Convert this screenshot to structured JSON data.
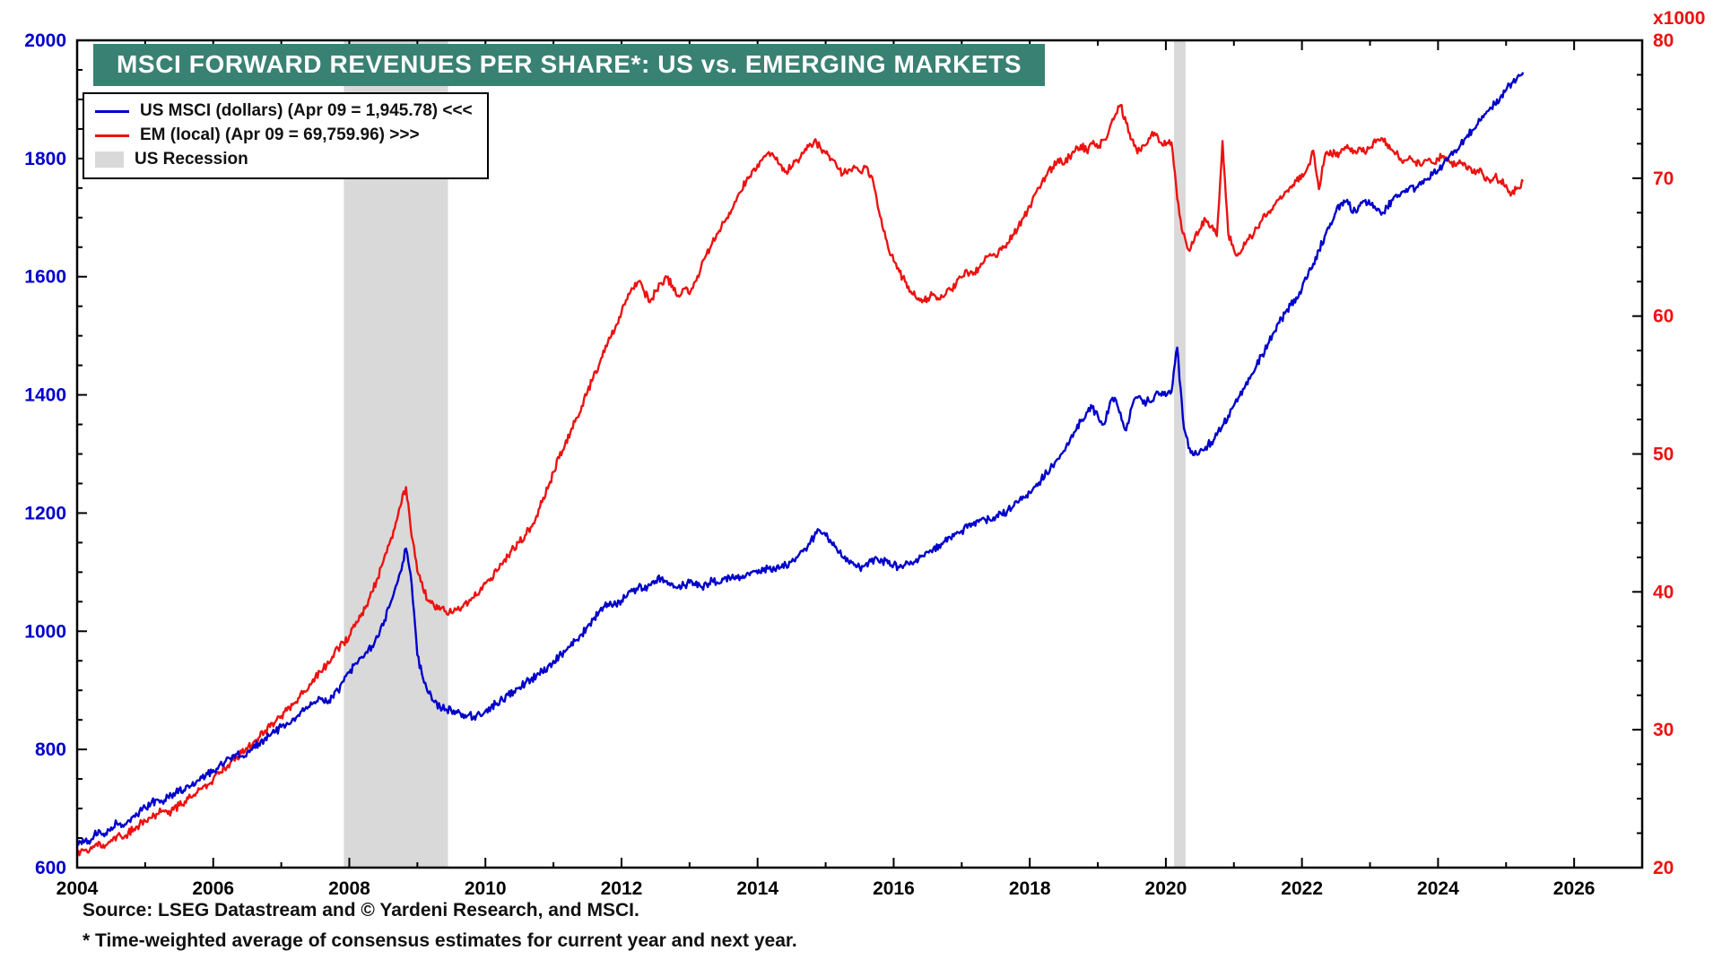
{
  "title_bar": {
    "bg_color": "#398173",
    "text_color": "#FFFFFF"
  },
  "legend": {
    "us_label": "US MSCI (dollars) (Apr 09 = 1,945.78) <<<",
    "em_label": "EM (local) (Apr 09 = 69,759.96) >>>",
    "recession_label": "US Recession"
  },
  "footer": {
    "source": "Source: LSEG Datastream and © Yardeni Research, and MSCI.",
    "footnote": "* Time-weighted average of consensus estimates for current year and next year."
  },
  "chart_data": {
    "type": "line",
    "title": "MSCI FORWARD REVENUES PER SHARE*: US vs. EMERGING MARKETS",
    "grid": false,
    "legend_position": "top-left",
    "recession_color": "#D9D9D9",
    "recessions": [
      {
        "start": 2007.92,
        "end": 2009.45
      },
      {
        "start": 2020.12,
        "end": 2020.29
      }
    ],
    "x_axis": {
      "min": 2004,
      "max": 2027,
      "minor_step": 1,
      "ticks": [
        2004,
        2006,
        2008,
        2010,
        2012,
        2014,
        2016,
        2018,
        2020,
        2022,
        2024,
        2026
      ],
      "tick_labels": [
        "2004",
        "2006",
        "2008",
        "2010",
        "2012",
        "2014",
        "2016",
        "2018",
        "2020",
        "2022",
        "2024",
        "2026"
      ],
      "label_color": "#000000"
    },
    "left_axis": {
      "min": 600,
      "max": 2000,
      "step": 200,
      "minor_step": 50,
      "ticks": [
        600,
        800,
        1000,
        1200,
        1400,
        1600,
        1800,
        2000
      ],
      "tick_labels": [
        "600",
        "800",
        "1000",
        "1200",
        "1400",
        "1600",
        "1800",
        "2000"
      ],
      "color": "#0000CC"
    },
    "right_axis": {
      "min": 20,
      "max": 80,
      "step": 10,
      "minor_step": 2.5,
      "ticks": [
        20,
        30,
        40,
        50,
        60,
        70,
        80
      ],
      "tick_labels": [
        "20",
        "30",
        "40",
        "50",
        "60",
        "70",
        "80"
      ],
      "unit_label": "x1000",
      "color": "#EE1111"
    },
    "series": [
      {
        "name": "EM (local)",
        "data_name": "em-series-line",
        "axis": "right",
        "color": "#EE1111",
        "x_start": 2004.0,
        "x_step": 0.0833333,
        "last_point": {
          "date": "Apr 09",
          "value": 69759.96
        },
        "values": [
          21.0,
          21.3,
          21.1,
          21.5,
          21.8,
          21.6,
          22.0,
          22.3,
          22.1,
          22.5,
          22.8,
          23.1,
          23.4,
          23.6,
          23.9,
          24.1,
          23.9,
          24.2,
          24.5,
          24.8,
          25.1,
          25.4,
          25.7,
          26.0,
          26.4,
          26.8,
          27.2,
          27.6,
          28.0,
          28.3,
          28.6,
          29.0,
          29.4,
          29.8,
          30.2,
          30.6,
          31.0,
          31.4,
          31.8,
          32.3,
          32.8,
          33.3,
          33.8,
          34.2,
          34.7,
          35.3,
          35.9,
          36.3,
          36.8,
          37.5,
          38.2,
          39.0,
          40.0,
          41.0,
          42.2,
          43.4,
          44.6,
          46.2,
          47.6,
          44.0,
          41.5,
          40.2,
          39.3,
          38.9,
          38.7,
          38.6,
          38.5,
          38.7,
          38.9,
          39.2,
          39.6,
          40.0,
          40.6,
          41.0,
          41.5,
          42.0,
          42.6,
          43.2,
          43.6,
          44.1,
          44.7,
          45.5,
          46.5,
          47.5,
          48.7,
          49.7,
          50.6,
          51.6,
          52.6,
          53.5,
          54.5,
          55.5,
          56.4,
          57.4,
          58.4,
          59.3,
          60.3,
          61.2,
          62.0,
          62.5,
          61.8,
          61.0,
          61.8,
          62.4,
          62.8,
          62.2,
          61.5,
          62.0,
          61.6,
          62.5,
          63.5,
          64.5,
          65.3,
          66.0,
          66.8,
          67.5,
          68.3,
          69.0,
          69.8,
          70.5,
          71.0,
          71.5,
          71.9,
          71.5,
          71.0,
          70.5,
          70.8,
          71.3,
          71.8,
          72.3,
          72.7,
          72.3,
          71.8,
          71.4,
          70.8,
          70.3,
          70.6,
          70.9,
          70.5,
          70.8,
          70.2,
          68.5,
          66.5,
          65.0,
          64.0,
          63.2,
          62.5,
          61.8,
          61.3,
          61.0,
          61.3,
          61.6,
          61.2,
          61.5,
          61.9,
          62.3,
          62.8,
          63.2,
          63.0,
          63.5,
          64.0,
          64.5,
          64.3,
          64.8,
          65.3,
          65.9,
          66.5,
          67.2,
          68.0,
          68.9,
          69.5,
          70.2,
          70.8,
          71.4,
          71.0,
          71.6,
          72.0,
          72.4,
          72.0,
          72.5,
          72.2,
          72.8,
          73.5,
          74.5,
          75.3,
          74.0,
          72.8,
          71.8,
          72.4,
          72.9,
          73.3,
          72.6,
          72.4,
          72.6,
          68.5,
          66.0,
          64.8,
          65.5,
          66.3,
          67.0,
          66.5,
          65.8,
          72.7,
          66.0,
          64.8,
          64.5,
          65.2,
          65.8,
          66.4,
          67.0,
          67.5,
          68.0,
          68.5,
          69.0,
          69.4,
          69.8,
          70.3,
          70.8,
          72.0,
          69.2,
          71.5,
          72.0,
          71.6,
          72.1,
          72.4,
          71.8,
          72.2,
          71.9,
          72.2,
          72.6,
          72.9,
          72.5,
          72.0,
          71.6,
          71.3,
          71.6,
          71.2,
          70.9,
          71.3,
          71.1,
          71.4,
          71.6,
          71.2,
          70.9,
          71.1,
          70.7,
          70.4,
          70.6,
          70.2,
          69.9,
          70.1,
          69.8,
          69.5,
          68.9,
          69.3,
          69.76
        ]
      },
      {
        "name": "US MSCI (dollars)",
        "data_name": "us-series-line",
        "axis": "left",
        "color": "#0000CC",
        "x_start": 2004.0,
        "x_step": 0.0833333,
        "last_point": {
          "date": "Apr 09",
          "value": 1945.78
        },
        "values": [
          640,
          648,
          645,
          655,
          662,
          658,
          668,
          675,
          672,
          680,
          688,
          695,
          702,
          708,
          715,
          712,
          720,
          726,
          733,
          730,
          738,
          745,
          752,
          758,
          765,
          772,
          778,
          785,
          792,
          788,
          796,
          803,
          810,
          816,
          823,
          830,
          838,
          845,
          852,
          858,
          865,
          872,
          878,
          885,
          880,
          890,
          900,
          915,
          930,
          945,
          955,
          965,
          975,
          990,
          1010,
          1040,
          1070,
          1100,
          1140,
          1080,
          960,
          920,
          895,
          880,
          872,
          868,
          865,
          862,
          860,
          858,
          856,
          860,
          865,
          872,
          878,
          885,
          892,
          898,
          905,
          912,
          918,
          925,
          932,
          940,
          950,
          958,
          965,
          975,
          985,
          995,
          1008,
          1020,
          1032,
          1042,
          1050,
          1045,
          1052,
          1060,
          1068,
          1075,
          1070,
          1078,
          1085,
          1090,
          1085,
          1080,
          1075,
          1078,
          1082,
          1078,
          1075,
          1080,
          1085,
          1082,
          1088,
          1092,
          1088,
          1092,
          1096,
          1100,
          1098,
          1102,
          1106,
          1104,
          1108,
          1112,
          1118,
          1125,
          1135,
          1148,
          1160,
          1170,
          1162,
          1150,
          1138,
          1125,
          1118,
          1112,
          1108,
          1112,
          1118,
          1124,
          1120,
          1115,
          1112,
          1108,
          1112,
          1118,
          1122,
          1128,
          1134,
          1140,
          1146,
          1152,
          1158,
          1165,
          1170,
          1175,
          1180,
          1185,
          1190,
          1188,
          1193,
          1198,
          1203,
          1210,
          1218,
          1226,
          1235,
          1245,
          1256,
          1268,
          1280,
          1292,
          1305,
          1320,
          1338,
          1355,
          1370,
          1378,
          1365,
          1350,
          1380,
          1395,
          1370,
          1340,
          1380,
          1395,
          1385,
          1390,
          1398,
          1402,
          1398,
          1405,
          1480,
          1360,
          1310,
          1298,
          1305,
          1312,
          1320,
          1332,
          1348,
          1365,
          1382,
          1398,
          1415,
          1432,
          1450,
          1468,
          1486,
          1505,
          1522,
          1538,
          1552,
          1565,
          1580,
          1600,
          1622,
          1645,
          1668,
          1690,
          1710,
          1725,
          1730,
          1708,
          1720,
          1728,
          1722,
          1715,
          1705,
          1718,
          1730,
          1738,
          1745,
          1752,
          1748,
          1756,
          1764,
          1772,
          1780,
          1792,
          1804,
          1814,
          1824,
          1836,
          1848,
          1858,
          1870,
          1882,
          1892,
          1904,
          1916,
          1928,
          1938,
          1945.78
        ]
      }
    ]
  }
}
